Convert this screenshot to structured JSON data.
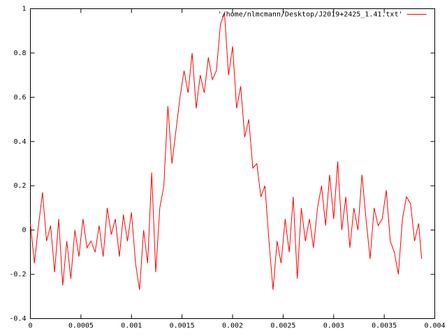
{
  "chart_data": {
    "type": "line",
    "x": [
      0,
      4e-05,
      8e-05,
      0.00012,
      0.00016,
      0.0002,
      0.00024,
      0.00028,
      0.00032,
      0.00036,
      0.0004,
      0.00044,
      0.00048,
      0.00052,
      0.00056,
      0.0006,
      0.00064,
      0.00068,
      0.00072,
      0.00076,
      0.0008,
      0.00084,
      0.00088,
      0.00092,
      0.00096,
      0.001,
      0.00104,
      0.00108,
      0.00112,
      0.00116,
      0.0012,
      0.00124,
      0.00128,
      0.00132,
      0.00136,
      0.0014,
      0.00144,
      0.00148,
      0.00152,
      0.00156,
      0.0016,
      0.00164,
      0.00168,
      0.00172,
      0.00176,
      0.0018,
      0.00184,
      0.00188,
      0.00192,
      0.00196,
      0.002,
      0.00204,
      0.00208,
      0.00212,
      0.00216,
      0.0022,
      0.00224,
      0.00228,
      0.00232,
      0.00236,
      0.0024,
      0.00244,
      0.00248,
      0.00252,
      0.00256,
      0.0026,
      0.00264,
      0.00268,
      0.00272,
      0.00276,
      0.0028,
      0.00284,
      0.00288,
      0.00292,
      0.00296,
      0.003,
      0.00304,
      0.00308,
      0.00312,
      0.00316,
      0.0032,
      0.00324,
      0.00328,
      0.00332,
      0.00336,
      0.0034,
      0.00344,
      0.00348,
      0.00352,
      0.00356,
      0.0036,
      0.00364,
      0.00368,
      0.00372,
      0.00376,
      0.0038,
      0.00384,
      0.00387
    ],
    "series": [
      {
        "name": "'/home/nlmcmann/Desktop/J2019+2425_1.41.txt'",
        "color": "#ff0000",
        "values": [
          0.03,
          -0.15,
          0.02,
          0.17,
          -0.05,
          0.02,
          -0.19,
          0.05,
          -0.25,
          -0.05,
          -0.22,
          0.0,
          -0.12,
          0.05,
          -0.08,
          -0.05,
          -0.1,
          0.02,
          -0.12,
          0.1,
          -0.02,
          0.05,
          -0.12,
          0.07,
          -0.05,
          0.08,
          -0.15,
          -0.27,
          0.0,
          -0.15,
          0.26,
          -0.19,
          0.1,
          0.2,
          0.56,
          0.3,
          0.45,
          0.6,
          0.72,
          0.62,
          0.8,
          0.55,
          0.7,
          0.62,
          0.78,
          0.68,
          0.72,
          0.93,
          0.98,
          0.7,
          0.83,
          0.55,
          0.65,
          0.42,
          0.5,
          0.28,
          0.3,
          0.15,
          0.2,
          -0.05,
          -0.27,
          -0.05,
          -0.15,
          0.05,
          -0.1,
          0.15,
          -0.22,
          0.1,
          -0.05,
          0.05,
          -0.08,
          0.1,
          0.2,
          0.02,
          0.25,
          0.05,
          0.31,
          0.0,
          0.15,
          -0.08,
          0.1,
          0.0,
          0.25,
          0.05,
          -0.13,
          0.1,
          0.02,
          0.05,
          0.18,
          -0.05,
          -0.1,
          -0.2,
          0.05,
          0.15,
          0.12,
          -0.05,
          0.03,
          -0.13
        ]
      }
    ],
    "xlim": [
      0,
      0.004
    ],
    "xticks": [
      0,
      0.0005,
      0.001,
      0.0015,
      0.002,
      0.0025,
      0.003,
      0.0035,
      0.004
    ],
    "ylim": [
      -0.4,
      1
    ],
    "yticks": [
      -0.4,
      -0.2,
      0,
      0.2,
      0.4,
      0.6,
      0.8,
      1
    ],
    "grid": false,
    "legend": "top-right"
  }
}
